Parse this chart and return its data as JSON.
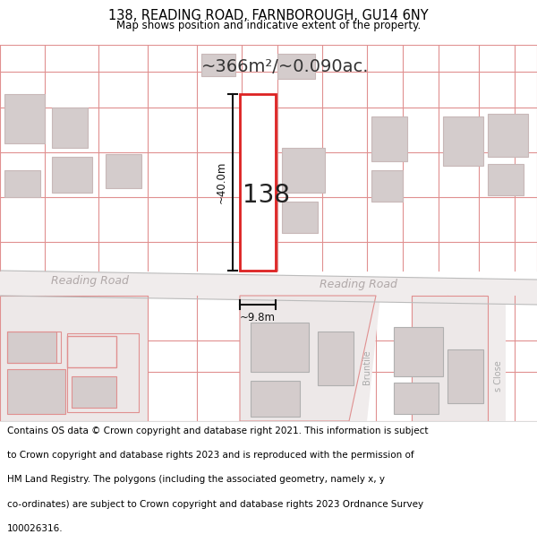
{
  "title_line1": "138, READING ROAD, FARNBOROUGH, GU14 6NY",
  "title_line2": "Map shows position and indicative extent of the property.",
  "area_text": "~366m²/~0.090ac.",
  "label_138": "138",
  "label_width": "~9.8m",
  "label_height": "~40.0m",
  "road_label_left": "Reading Road",
  "road_label_right": "Reading Road",
  "street_bruntile": "Bruntile",
  "street_rivers": "s Close",
  "map_bg": "#ede8e8",
  "road_color": "#e8e4e4",
  "highlight_red": "#dd2222",
  "bld_fill": "#d4cccc",
  "bld_edge": "#c8b8b8",
  "plot_line": "#e09090",
  "dim_line_color": "#111111",
  "text_dark": "#333333",
  "road_text_color": "#aaaaaa",
  "footer_lines": [
    "Contains OS data © Crown copyright and database right 2021. This information is subject",
    "to Crown copyright and database rights 2023 and is reproduced with the permission of",
    "HM Land Registry. The polygons (including the associated geometry, namely x, y",
    "co-ordinates) are subject to Crown copyright and database rights 2023 Ordnance Survey",
    "100026316."
  ]
}
